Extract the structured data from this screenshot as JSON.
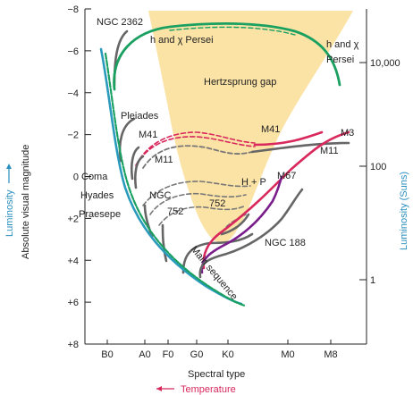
{
  "chart_data": {
    "type": "line",
    "xlabel": "Spectral type",
    "xlabel_sub": "Temperature",
    "ylabel": "Absolute visual magnitude",
    "ylabel_left": "Luminosity",
    "ylabel_right": "Luminosity (Suns)",
    "x_ticks": [
      "B0",
      "A0",
      "F0",
      "G0",
      "K0",
      "M0",
      "M8"
    ],
    "y_ticks": [
      "−8",
      "−6",
      "−4",
      "−2",
      "0",
      "+2",
      "+4",
      "+6",
      "+8"
    ],
    "ylim": [
      -8,
      8
    ],
    "y_inverted": true,
    "right_ticks": [
      "10,000",
      "100",
      "1"
    ],
    "shaded_region": "Hertzsprung gap",
    "main_sequence_label": "Main sequence",
    "series": [
      {
        "name": "NGC 2362",
        "color": "#555555",
        "points": [
          [
            "B0",
            -5.0
          ],
          [
            "B0",
            -6.7
          ],
          [
            "B0",
            -7.6
          ]
        ]
      },
      {
        "name": "h and χ Persei",
        "color": "#1aa060",
        "points": [
          [
            "B0",
            -3.2
          ],
          [
            "A0",
            -6.5
          ],
          [
            "F0",
            -7.2
          ],
          [
            "K0",
            -7.0
          ],
          [
            "M0",
            -6.3
          ],
          [
            "M8",
            -4.2
          ]
        ]
      },
      {
        "name": "Pleiades",
        "color": "#555555",
        "points": [
          [
            "B0",
            -1.0
          ],
          [
            "A0",
            -1.6
          ]
        ]
      },
      {
        "name": "M41",
        "color": "#d8285c",
        "points": [
          [
            "A0",
            -1.4
          ],
          [
            "G0",
            -1.2
          ],
          [
            "K0",
            -1.0
          ],
          [
            "M0",
            -1.4
          ],
          [
            "M8",
            -2.1
          ]
        ]
      },
      {
        "name": "M11",
        "color": "#555555",
        "points": [
          [
            "A0",
            -0.7
          ],
          [
            "G0",
            -0.6
          ],
          [
            "K0",
            -0.4
          ],
          [
            "M0",
            -0.7
          ],
          [
            "M8",
            -1.1
          ]
        ]
      },
      {
        "name": "M3",
        "color": "#d8285c",
        "points": [
          [
            "K0",
            4.0
          ],
          [
            "K0",
            1.4
          ],
          [
            "M0",
            -1.2
          ],
          [
            "M8",
            -2.1
          ]
        ]
      },
      {
        "name": "M67",
        "color": "#7a1e8c",
        "points": [
          [
            "K0",
            3.9
          ],
          [
            "K0",
            1.5
          ],
          [
            "M0",
            0.9
          ],
          [
            "M0",
            0.4
          ]
        ]
      },
      {
        "name": "NGC 188",
        "color": "#555555",
        "points": [
          [
            "K0",
            4.0
          ],
          [
            "K0",
            2.2
          ],
          [
            "M0",
            1.4
          ],
          [
            "M0",
            0.5
          ]
        ]
      },
      {
        "name": "Coma",
        "color": "#555555",
        "points": [
          [
            "A0",
            1.3
          ],
          [
            "F0",
            0.4
          ],
          [
            "G0",
            0.1
          ],
          [
            "K0",
            0.1
          ]
        ]
      },
      {
        "name": "Hyades",
        "color": "#555555",
        "points": [
          [
            "A0",
            2.0
          ],
          [
            "F0",
            1.3
          ],
          [
            "G0",
            1.2
          ],
          [
            "K0",
            0.6
          ]
        ]
      },
      {
        "name": "Praesepe",
        "color": "#555555",
        "points": [
          [
            "A0",
            2.4
          ],
          [
            "F0",
            1.8
          ],
          [
            "G0",
            1.6
          ],
          [
            "K0",
            1.1
          ]
        ]
      },
      {
        "name": "NGC 752",
        "color": "#555555",
        "points": [
          [
            "F0",
            2.9
          ],
          [
            "G0",
            1.8
          ],
          [
            "K0",
            1.5
          ]
        ]
      },
      {
        "name": "H + P",
        "color": "#555555",
        "points": [
          [
            "G0",
            2.6
          ],
          [
            "K0",
            2.1
          ],
          [
            "K0",
            0.9
          ]
        ]
      }
    ],
    "labels": {
      "ngc2362": "NGC 2362",
      "hpersei_top": "h and χ Persei",
      "hpersei_right_1": "h and χ",
      "hpersei_right_2": "Persei",
      "pleiades": "Pleiades",
      "m41_left": "M41",
      "m41_right": "M41",
      "m11_left": "M11",
      "m11_right": "M11",
      "m3": "M3",
      "m67": "M67",
      "ngc188": "NGC 188",
      "coma": "Coma",
      "hyades": "Hyades",
      "praesepe": "Praesepe",
      "ngc752_left_1": "NGC",
      "ngc752_left_2": "752",
      "ngc752_mid": "752",
      "hp": "H + P",
      "hz_gap": "Hertzsprung gap"
    },
    "colors": {
      "gap_fill": "#fbe3a6",
      "main_sequence_teal": "#2a9bbd",
      "main_sequence_green": "#1aa060",
      "red": "#d8285c",
      "purple": "#7a1e8c",
      "gray": "#666666",
      "luminosity_label": "#2a8fc0",
      "temperature_label": "#d8285c"
    }
  }
}
